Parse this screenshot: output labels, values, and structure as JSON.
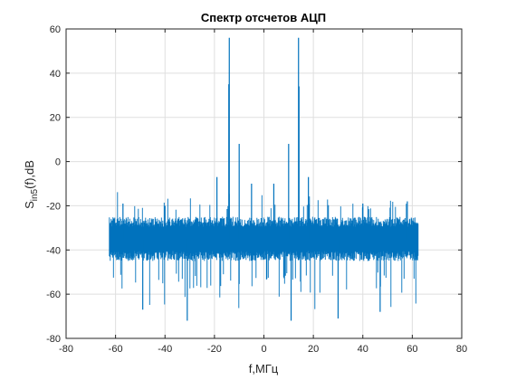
{
  "chart_data": {
    "type": "line",
    "title": "Спектр отсчетов АЦП",
    "xlabel": "f,МГц",
    "ylabel": {
      "base": "S",
      "subscript": "in5",
      "suffix": "(f),dB"
    },
    "xlim": [
      -80,
      80
    ],
    "ylim": [
      -80,
      60
    ],
    "xticks": [
      -80,
      -60,
      -40,
      -20,
      0,
      20,
      40,
      60,
      80
    ],
    "yticks": [
      -80,
      -60,
      -40,
      -20,
      0,
      20,
      40,
      60
    ],
    "grid": true,
    "series": [
      {
        "color": "#0072BD",
        "x_range": [
          -62.5,
          62.5
        ],
        "noise_floor_band_db": [
          -45,
          -25
        ],
        "noise_mean_db": -35,
        "notable_points": [
          {
            "x": -14,
            "y": 56
          },
          {
            "x": -14.2,
            "y": 35
          },
          {
            "x": 14,
            "y": 56
          },
          {
            "x": 14.2,
            "y": 34
          },
          {
            "x": -10,
            "y": 8
          },
          {
            "x": 10,
            "y": 8
          },
          {
            "x": -5,
            "y": -10
          },
          {
            "x": 4,
            "y": -10
          },
          {
            "x": -19,
            "y": -7
          },
          {
            "x": 18,
            "y": -7
          },
          {
            "x": -40,
            "y": -20
          },
          {
            "x": 40,
            "y": -19
          },
          {
            "x": -57,
            "y": -19
          },
          {
            "x": 58,
            "y": -18
          },
          {
            "x": -31,
            "y": -72
          },
          {
            "x": 30,
            "y": -71
          },
          {
            "x": 11,
            "y": -72
          },
          {
            "x": -49,
            "y": -67
          },
          {
            "x": 47,
            "y": -68
          }
        ]
      }
    ],
    "colors": {
      "axes": "#262626",
      "grid": "#dfdfdf",
      "trace": "#0072BD"
    }
  }
}
